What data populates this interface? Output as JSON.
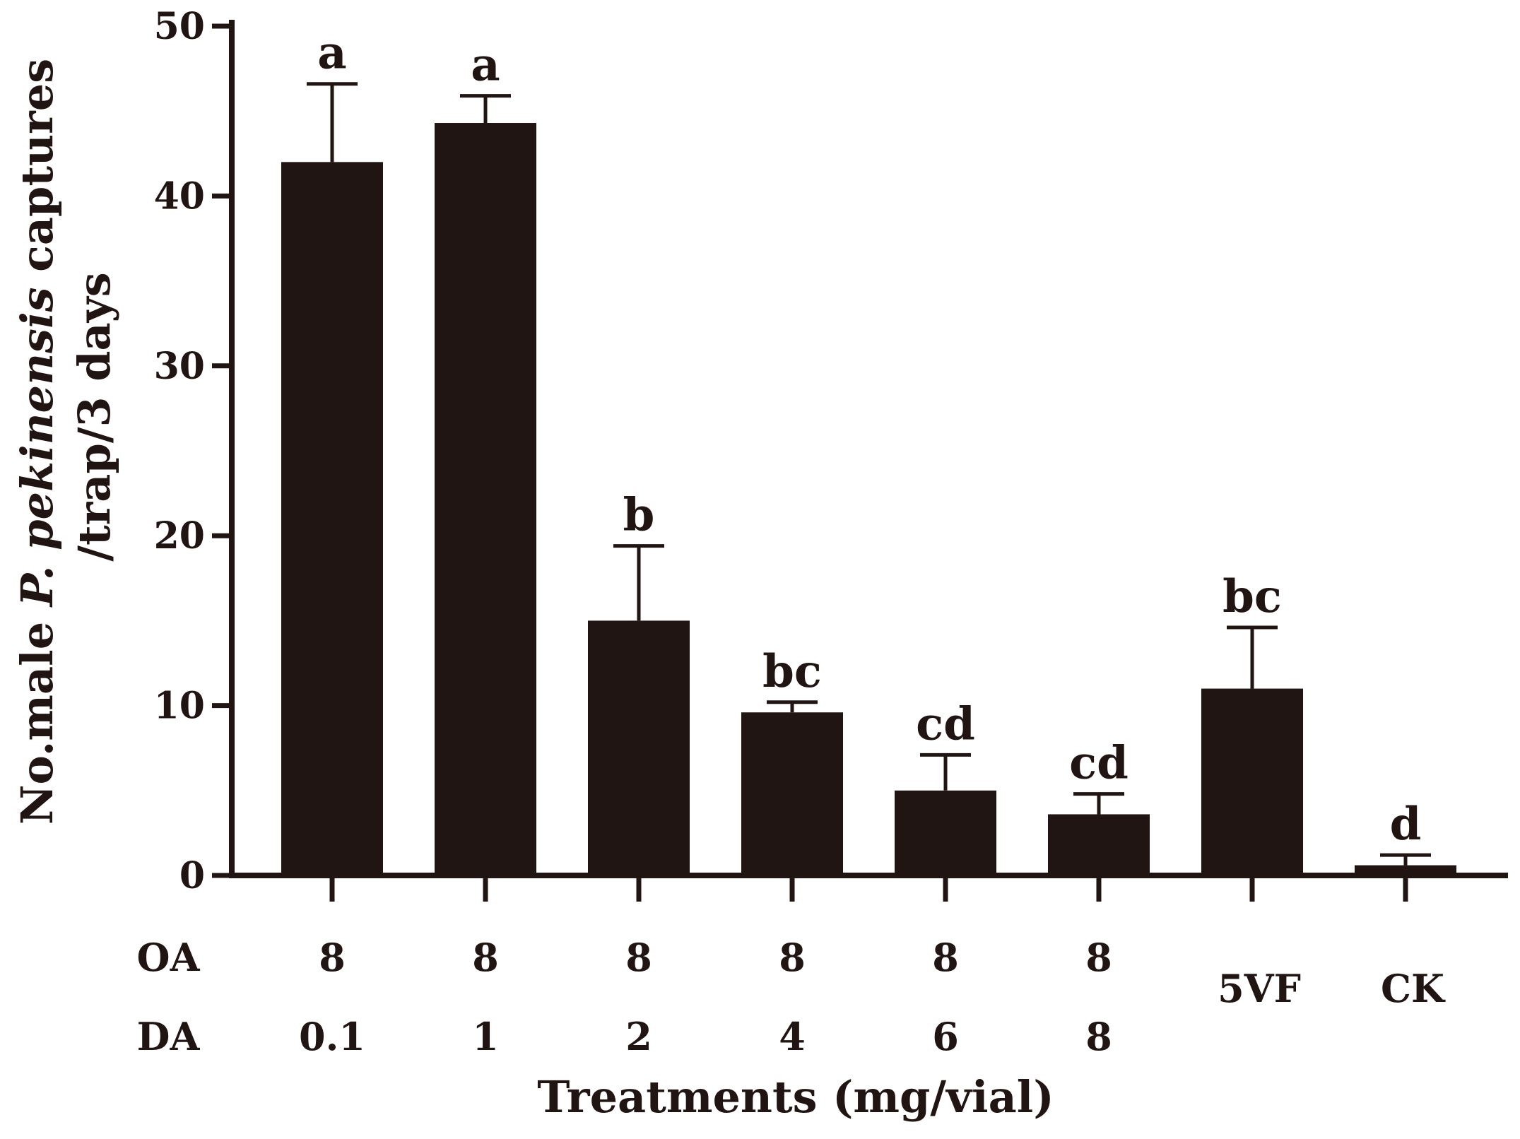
{
  "chart_data": {
    "type": "bar",
    "title": "",
    "categories": [
      "OA 8 / DA 0.1",
      "OA 8 / DA 1",
      "OA 8 / DA 2",
      "OA 8 / DA 4",
      "OA 8 / DA 6",
      "OA 8 / DA 8",
      "5VF",
      "CK"
    ],
    "values": [
      42,
      44.3,
      15,
      9.6,
      5,
      3.6,
      11,
      0.6
    ],
    "errors": [
      4.6,
      1.6,
      4.4,
      0.6,
      2.1,
      1.2,
      3.6,
      0.6
    ],
    "significance_letters": [
      "a",
      "a",
      "b",
      "bc",
      "cd",
      "cd",
      "bc",
      "d"
    ],
    "oa_row": {
      "label": "OA",
      "values": [
        "8",
        "8",
        "8",
        "8",
        "8",
        "8"
      ]
    },
    "da_row": {
      "label": "DA",
      "values": [
        "0.1",
        "1",
        "2",
        "4",
        "6",
        "8"
      ]
    },
    "special_labels": [
      "5VF",
      "CK"
    ],
    "xlabel": "Treatments (mg/vial)",
    "ylabel": {
      "line1_prefix": "No.male ",
      "line1_italic": "P. pekinensis",
      "line1_suffix": " captures",
      "line2": "/trap/3 days"
    },
    "ylim": [
      0,
      50
    ],
    "yticks": [
      "0",
      "10",
      "20",
      "30",
      "40",
      "50"
    ],
    "grid": false,
    "colors": {
      "bar": "#201513",
      "axis": "#201513",
      "background": "#ffffff"
    }
  }
}
